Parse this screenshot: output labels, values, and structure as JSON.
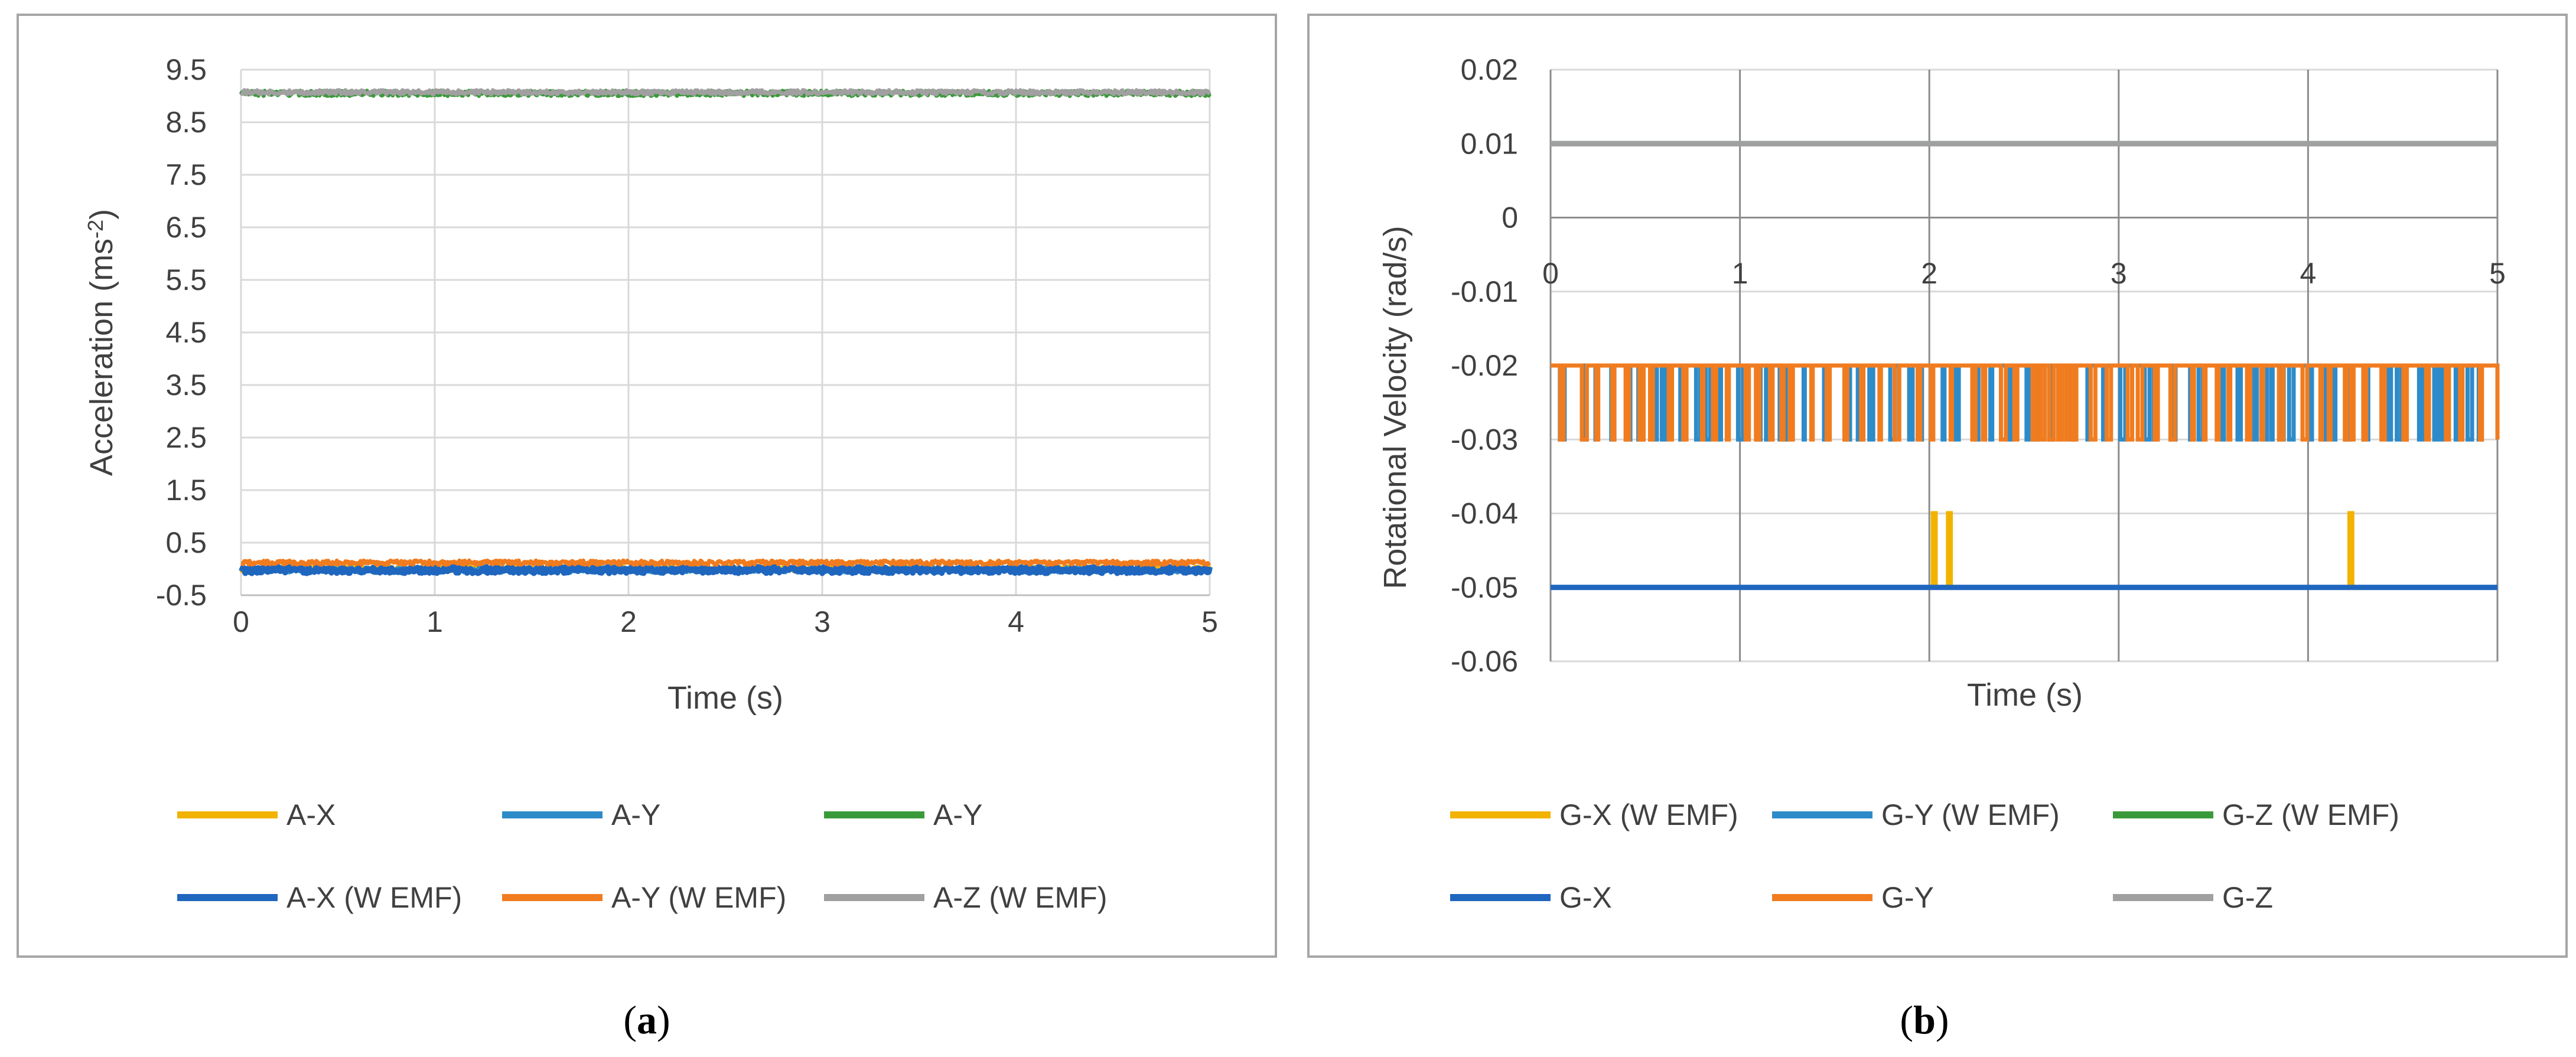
{
  "chart_data": [
    {
      "type": "line",
      "panel_label": "a",
      "xlabel": "Time (s)",
      "ylabel": "Acceleration (ms",
      "ylabel_sup": "-2",
      "ylabel_end": ")",
      "xlim": [
        0,
        5
      ],
      "ylim": [
        -0.5,
        9.5
      ],
      "xticks": [
        "0",
        "1",
        "2",
        "3",
        "4",
        "5"
      ],
      "yticks": [
        "9.5",
        "8.5",
        "7.5",
        "6.5",
        "5.5",
        "4.5",
        "3.5",
        "2.5",
        "1.5",
        "0.5",
        "-0.5"
      ],
      "grid": true,
      "legend_position": "bottom",
      "series": [
        {
          "name": "A-X",
          "color": "#f2b300",
          "level": 0.0,
          "noise": 0.05
        },
        {
          "name": "A-Y",
          "color": "#2e8bc9",
          "level": -0.02,
          "noise": 0.05
        },
        {
          "name": "A-Y",
          "color": "#3a9a3a",
          "level": 9.05,
          "noise": 0.05
        },
        {
          "name": "A-X (W EMF)",
          "color": "#1f66bf",
          "level": -0.02,
          "noise": 0.06
        },
        {
          "name": "A-Y (W EMF)",
          "color": "#f07c1f",
          "level": 0.12,
          "noise": 0.04
        },
        {
          "name": "A-Z (W EMF)",
          "color": "#a0a0a0",
          "level": 9.07,
          "noise": 0.04
        }
      ]
    },
    {
      "type": "line",
      "panel_label": "b",
      "xlabel": "Time (s)",
      "ylabel": "Rotational Velocity (rad/s)",
      "xlim": [
        0,
        5
      ],
      "ylim": [
        -0.06,
        0.02
      ],
      "xticks": [
        "0",
        "1",
        "2",
        "3",
        "4",
        "5"
      ],
      "yticks": [
        "0.02",
        "0.01",
        "0",
        "-0.01",
        "-0.02",
        "-0.03",
        "-0.04",
        "-0.05",
        "-0.06"
      ],
      "grid": true,
      "legend_position": "bottom",
      "series": [
        {
          "name": "G-X (W EMF)",
          "color": "#f2b300",
          "level": -0.05,
          "spikes_to": -0.04,
          "spikes_at": [
            2.02,
            2.1,
            4.22
          ]
        },
        {
          "name": "G-Y (W EMF)",
          "color": "#2e8bc9",
          "level": -0.02,
          "toggle_to": -0.03
        },
        {
          "name": "G-Z (W EMF)",
          "color": "#3a9a3a",
          "level": 0.01
        },
        {
          "name": "G-X",
          "color": "#1f66bf",
          "level": -0.05
        },
        {
          "name": "G-Y",
          "color": "#f07c1f",
          "level": -0.02,
          "toggle_to": -0.03
        },
        {
          "name": "G-Z",
          "color": "#a0a0a0",
          "level": 0.01
        }
      ]
    }
  ]
}
